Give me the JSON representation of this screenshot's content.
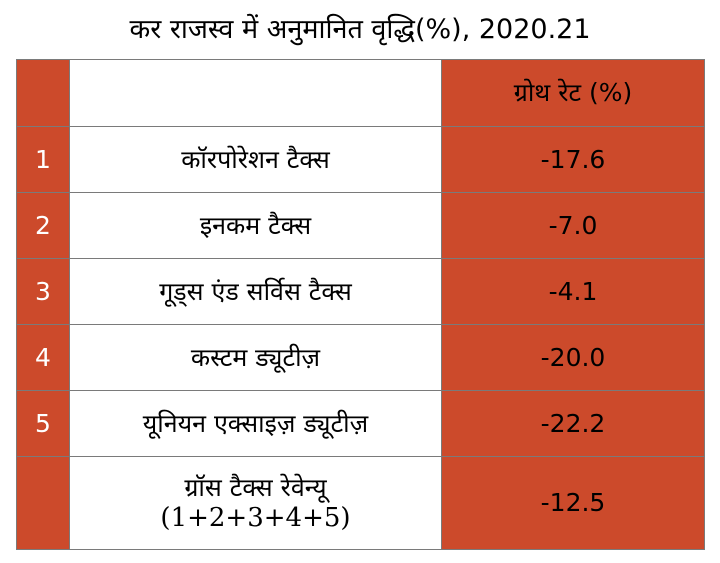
{
  "title": "कर राजस्व में अनुमानित वृद्धि(%),  2020.21",
  "table": {
    "header": {
      "num": "",
      "name": "",
      "value": "ग्रोथ रेट (%)"
    },
    "rows": [
      {
        "num": "1",
        "name": "कॉरपोरेशन  टैक्स",
        "value": "-17.6"
      },
      {
        "num": "2",
        "name": "इनकम टैक्स",
        "value": "-7.0"
      },
      {
        "num": "3",
        "name": "गूड्स एंड सर्विस टैक्स",
        "value": "-4.1"
      },
      {
        "num": "4",
        "name": "कस्टम ड्यूटीज़",
        "value": "-20.0"
      },
      {
        "num": "5",
        "name": "यूनियन एक्साइज़ ड्यूटीज़",
        "value": "-22.2"
      }
    ],
    "total": {
      "num": "",
      "name": "ग्रॉस टैक्स रेवेन्यू",
      "formula": "(1+2+3+4+5)",
      "value": "-12.5"
    }
  },
  "colors": {
    "accent": "#cc4a2b",
    "border": "#7a7a7a"
  }
}
